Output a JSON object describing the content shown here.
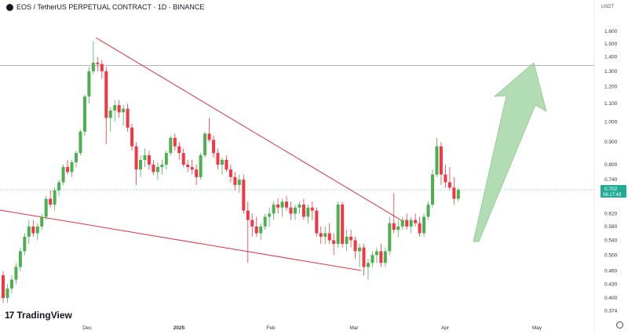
{
  "header": {
    "title": "EOS / TetherUS PERPETUAL CONTRACT · 1D · BINANCE",
    "currency": "USDT"
  },
  "watermark": {
    "text": "TradingView"
  },
  "colors": {
    "up": "#22ab94",
    "up_fill": "#4caf50",
    "down": "#f23645",
    "trend": "#e0344a",
    "arrow": "#a5d6a7"
  },
  "chart_data": {
    "type": "candlestick",
    "y_ticks": [
      "1.600",
      "1.500",
      "1.400",
      "1.300",
      "1.200",
      "1.100",
      "1.000",
      "0.900",
      "0.800",
      "0.740",
      "0.620",
      "0.580",
      "0.540",
      "0.500",
      "0.460",
      "0.430",
      "0.400",
      "0.374"
    ],
    "x_ticks": [
      "Dec",
      "2025",
      "Feb",
      "Mar",
      "Apr",
      "May"
    ],
    "price_label": "0.702",
    "countdown_label": "06:17:43",
    "horizontal_level": 1.34,
    "candles": [
      [
        0.45,
        0.46,
        0.39,
        0.4
      ],
      [
        0.4,
        0.43,
        0.39,
        0.42
      ],
      [
        0.42,
        0.45,
        0.41,
        0.44
      ],
      [
        0.44,
        0.48,
        0.43,
        0.47
      ],
      [
        0.47,
        0.52,
        0.46,
        0.51
      ],
      [
        0.51,
        0.56,
        0.5,
        0.55
      ],
      [
        0.55,
        0.6,
        0.53,
        0.58
      ],
      [
        0.58,
        0.6,
        0.55,
        0.56
      ],
      [
        0.56,
        0.59,
        0.54,
        0.58
      ],
      [
        0.58,
        0.62,
        0.57,
        0.61
      ],
      [
        0.61,
        0.68,
        0.6,
        0.67
      ],
      [
        0.67,
        0.7,
        0.64,
        0.65
      ],
      [
        0.65,
        0.71,
        0.63,
        0.7
      ],
      [
        0.7,
        0.74,
        0.68,
        0.73
      ],
      [
        0.73,
        0.8,
        0.72,
        0.79
      ],
      [
        0.79,
        0.82,
        0.76,
        0.77
      ],
      [
        0.77,
        0.82,
        0.75,
        0.81
      ],
      [
        0.81,
        0.86,
        0.79,
        0.85
      ],
      [
        0.85,
        0.96,
        0.84,
        0.95
      ],
      [
        0.95,
        1.15,
        0.93,
        1.14
      ],
      [
        1.14,
        1.33,
        1.1,
        1.3
      ],
      [
        1.3,
        1.52,
        1.28,
        1.36
      ],
      [
        1.36,
        1.4,
        1.3,
        1.35
      ],
      [
        1.35,
        1.38,
        1.25,
        1.3
      ],
      [
        1.3,
        1.33,
        0.89,
        1.02
      ],
      [
        1.02,
        1.08,
        0.95,
        1.06
      ],
      [
        1.06,
        1.12,
        1.0,
        1.09
      ],
      [
        1.09,
        1.12,
        1.02,
        1.05
      ],
      [
        1.05,
        1.09,
        0.98,
        1.07
      ],
      [
        1.07,
        1.1,
        0.95,
        0.97
      ],
      [
        0.97,
        0.99,
        0.86,
        0.88
      ],
      [
        0.88,
        0.9,
        0.72,
        0.78
      ],
      [
        0.78,
        0.84,
        0.75,
        0.82
      ],
      [
        0.82,
        0.87,
        0.79,
        0.84
      ],
      [
        0.84,
        0.86,
        0.78,
        0.8
      ],
      [
        0.8,
        0.82,
        0.76,
        0.77
      ],
      [
        0.77,
        0.81,
        0.74,
        0.79
      ],
      [
        0.79,
        0.82,
        0.76,
        0.8
      ],
      [
        0.8,
        0.86,
        0.78,
        0.85
      ],
      [
        0.85,
        0.93,
        0.84,
        0.92
      ],
      [
        0.92,
        0.94,
        0.86,
        0.88
      ],
      [
        0.88,
        0.9,
        0.82,
        0.85
      ],
      [
        0.85,
        0.87,
        0.79,
        0.8
      ],
      [
        0.8,
        0.82,
        0.77,
        0.79
      ],
      [
        0.79,
        0.82,
        0.76,
        0.78
      ],
      [
        0.78,
        0.8,
        0.72,
        0.75
      ],
      [
        0.75,
        0.85,
        0.74,
        0.84
      ],
      [
        0.84,
        0.95,
        0.83,
        0.94
      ],
      [
        0.94,
        1.02,
        0.9,
        0.91
      ],
      [
        0.91,
        0.93,
        0.83,
        0.85
      ],
      [
        0.85,
        0.87,
        0.78,
        0.8
      ],
      [
        0.8,
        0.83,
        0.76,
        0.82
      ],
      [
        0.82,
        0.84,
        0.77,
        0.78
      ],
      [
        0.78,
        0.8,
        0.73,
        0.75
      ],
      [
        0.75,
        0.77,
        0.7,
        0.72
      ],
      [
        0.72,
        0.76,
        0.69,
        0.74
      ],
      [
        0.74,
        0.76,
        0.62,
        0.63
      ],
      [
        0.63,
        0.66,
        0.48,
        0.6
      ],
      [
        0.6,
        0.62,
        0.55,
        0.58
      ],
      [
        0.58,
        0.61,
        0.55,
        0.56
      ],
      [
        0.56,
        0.59,
        0.54,
        0.58
      ],
      [
        0.58,
        0.62,
        0.57,
        0.61
      ],
      [
        0.61,
        0.64,
        0.58,
        0.62
      ],
      [
        0.62,
        0.66,
        0.6,
        0.65
      ],
      [
        0.65,
        0.67,
        0.62,
        0.64
      ],
      [
        0.64,
        0.67,
        0.61,
        0.66
      ],
      [
        0.66,
        0.68,
        0.63,
        0.64
      ],
      [
        0.64,
        0.66,
        0.6,
        0.62
      ],
      [
        0.62,
        0.65,
        0.6,
        0.64
      ],
      [
        0.64,
        0.66,
        0.62,
        0.65
      ],
      [
        0.65,
        0.67,
        0.6,
        0.61
      ],
      [
        0.61,
        0.65,
        0.59,
        0.64
      ],
      [
        0.64,
        0.66,
        0.6,
        0.63
      ],
      [
        0.63,
        0.64,
        0.55,
        0.56
      ],
      [
        0.56,
        0.58,
        0.53,
        0.55
      ],
      [
        0.55,
        0.58,
        0.53,
        0.56
      ],
      [
        0.56,
        0.59,
        0.53,
        0.54
      ],
      [
        0.54,
        0.56,
        0.5,
        0.53
      ],
      [
        0.53,
        0.66,
        0.52,
        0.65
      ],
      [
        0.65,
        0.66,
        0.52,
        0.53
      ],
      [
        0.53,
        0.57,
        0.51,
        0.55
      ],
      [
        0.55,
        0.57,
        0.52,
        0.54
      ],
      [
        0.54,
        0.55,
        0.49,
        0.51
      ],
      [
        0.51,
        0.53,
        0.47,
        0.52
      ],
      [
        0.52,
        0.53,
        0.45,
        0.47
      ],
      [
        0.47,
        0.49,
        0.44,
        0.48
      ],
      [
        0.48,
        0.51,
        0.47,
        0.5
      ],
      [
        0.5,
        0.52,
        0.48,
        0.51
      ],
      [
        0.51,
        0.53,
        0.47,
        0.48
      ],
      [
        0.48,
        0.52,
        0.47,
        0.51
      ],
      [
        0.51,
        0.61,
        0.5,
        0.59
      ],
      [
        0.59,
        0.69,
        0.56,
        0.57
      ],
      [
        0.57,
        0.6,
        0.55,
        0.58
      ],
      [
        0.58,
        0.61,
        0.57,
        0.6
      ],
      [
        0.6,
        0.62,
        0.57,
        0.58
      ],
      [
        0.58,
        0.61,
        0.56,
        0.6
      ],
      [
        0.6,
        0.62,
        0.58,
        0.59
      ],
      [
        0.59,
        0.61,
        0.55,
        0.56
      ],
      [
        0.56,
        0.62,
        0.55,
        0.61
      ],
      [
        0.61,
        0.66,
        0.6,
        0.65
      ],
      [
        0.65,
        0.78,
        0.64,
        0.76
      ],
      [
        0.76,
        0.92,
        0.75,
        0.88
      ],
      [
        0.88,
        0.9,
        0.72,
        0.76
      ],
      [
        0.76,
        0.8,
        0.71,
        0.73
      ],
      [
        0.73,
        0.79,
        0.7,
        0.71
      ],
      [
        0.71,
        0.75,
        0.65,
        0.67
      ],
      [
        0.67,
        0.71,
        0.66,
        0.702
      ]
    ]
  }
}
